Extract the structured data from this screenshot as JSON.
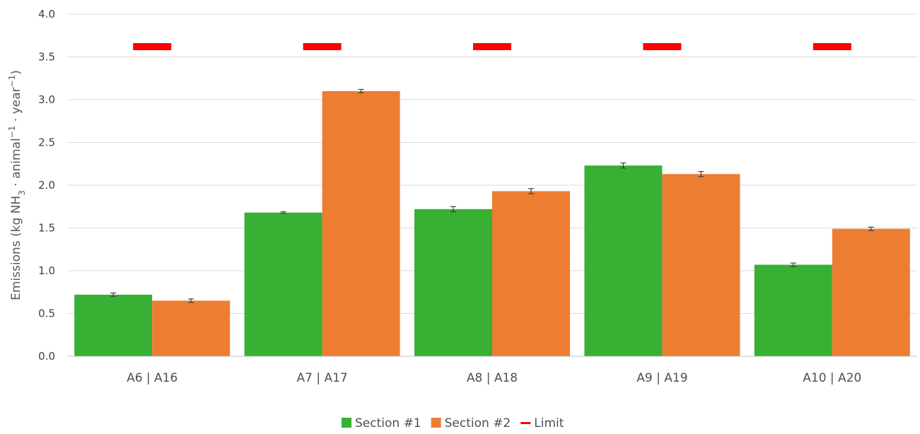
{
  "chart_data": {
    "type": "bar",
    "title": "",
    "xlabel": "",
    "ylabel_parts": [
      "Emissions (kg NH",
      "3",
      " · animal",
      "−1",
      " · year",
      "−1",
      ")"
    ],
    "ylim": [
      0,
      4
    ],
    "yticks": [
      "0.0",
      "0.5",
      "1.0",
      "1.5",
      "2.0",
      "2.5",
      "3.0",
      "3.5",
      "4.0"
    ],
    "ytick_values": [
      0,
      0.5,
      1,
      1.5,
      2,
      2.5,
      3,
      3.5,
      4
    ],
    "grid": true,
    "categories": [
      "A6 | A16",
      "A7 | A17",
      "A8 | A18",
      "A9 | A19",
      "A10 | A20"
    ],
    "series": [
      {
        "name": "Section #1",
        "color": "#37b034",
        "values": [
          0.72,
          1.68,
          1.72,
          2.23,
          1.07
        ],
        "errors": [
          0.02,
          0.01,
          0.03,
          0.03,
          0.02
        ]
      },
      {
        "name": "Section #2",
        "color": "#ed7d31",
        "values": [
          0.65,
          3.1,
          1.93,
          2.13,
          1.49
        ],
        "errors": [
          0.02,
          0.02,
          0.03,
          0.03,
          0.02
        ]
      }
    ],
    "limit": {
      "name": "Limit",
      "color": "#ff0000",
      "value": 3.62
    },
    "legend_position": "bottom"
  }
}
